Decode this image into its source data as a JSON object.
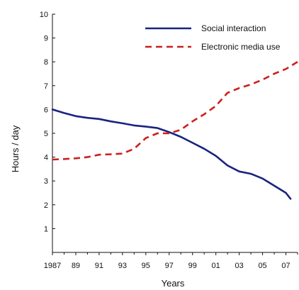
{
  "chart_data": {
    "type": "line",
    "title": "",
    "xlabel": "Years",
    "ylabel": "Hours / day",
    "xlim": [
      1987,
      2008
    ],
    "ylim": [
      0,
      10
    ],
    "x_tick_values": [
      1987,
      1989,
      1991,
      1993,
      1995,
      1997,
      1999,
      2001,
      2003,
      2005,
      2007
    ],
    "x_tick_labels": [
      "1987",
      "89",
      "91",
      "93",
      "95",
      "97",
      "99",
      "01",
      "03",
      "05",
      "07"
    ],
    "y_ticks": [
      1,
      2,
      3,
      4,
      5,
      6,
      7,
      8,
      9,
      10
    ],
    "grid": false,
    "legend": {
      "position": "top-right"
    },
    "series": [
      {
        "name": "Social interaction",
        "color": "#1a237e",
        "style": "solid",
        "x": [
          1987,
          1988,
          1989,
          1990,
          1991,
          1992,
          1993,
          1994,
          1995,
          1996,
          1997,
          1998,
          1999,
          2000,
          2001,
          2002,
          2003,
          2004,
          2005,
          2006,
          2007,
          2007.4
        ],
        "y": [
          6.0,
          5.85,
          5.72,
          5.65,
          5.6,
          5.5,
          5.42,
          5.33,
          5.28,
          5.22,
          5.05,
          4.85,
          4.6,
          4.35,
          4.05,
          3.65,
          3.4,
          3.3,
          3.1,
          2.8,
          2.5,
          2.25
        ]
      },
      {
        "name": "Electronic media use",
        "color": "#cc1f1f",
        "style": "dashed",
        "x": [
          1987,
          1988,
          1989,
          1990,
          1991,
          1992,
          1993,
          1994,
          1995,
          1996,
          1997,
          1998,
          1999,
          2000,
          2001,
          2002,
          2003,
          2004,
          2005,
          2006,
          2007,
          2008
        ],
        "y": [
          3.9,
          3.92,
          3.95,
          4.0,
          4.1,
          4.12,
          4.15,
          4.35,
          4.8,
          5.0,
          5.0,
          5.15,
          5.5,
          5.8,
          6.15,
          6.7,
          6.9,
          7.05,
          7.25,
          7.5,
          7.7,
          8.0
        ]
      }
    ]
  }
}
